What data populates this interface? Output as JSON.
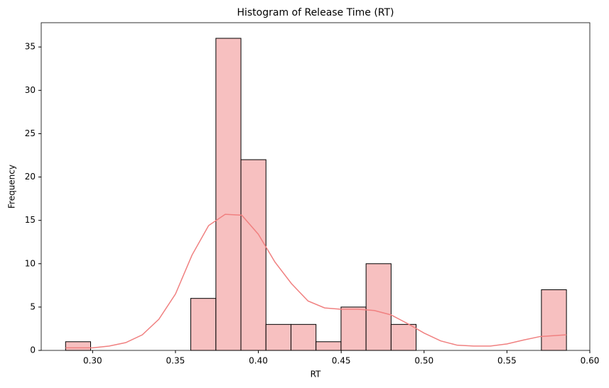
{
  "chart_data": {
    "type": "histogram",
    "title": "Histogram of Release Time (RT)",
    "x_label": "RT",
    "y_label": "Frequency",
    "bins": [
      0.2837,
      0.2988,
      0.3139,
      0.329,
      0.3441,
      0.3592,
      0.3744,
      0.3895,
      0.4046,
      0.4197,
      0.4348,
      0.4499,
      0.465,
      0.4801,
      0.4952,
      0.5103,
      0.5255,
      0.5406,
      0.5557,
      0.5708,
      0.5859
    ],
    "counts": [
      1,
      0,
      0,
      0,
      0,
      6,
      36,
      22,
      3,
      3,
      1,
      5,
      10,
      3,
      0,
      0,
      0,
      0,
      0,
      7
    ],
    "color": "#f7c0c0",
    "edgecolor": "#000000",
    "kde": {
      "color": "#f08080",
      "x": [
        0.2837,
        0.3,
        0.31,
        0.32,
        0.33,
        0.34,
        0.35,
        0.36,
        0.37,
        0.38,
        0.39,
        0.4,
        0.41,
        0.42,
        0.43,
        0.44,
        0.45,
        0.46,
        0.47,
        0.48,
        0.49,
        0.5,
        0.51,
        0.52,
        0.53,
        0.54,
        0.55,
        0.56,
        0.57,
        0.5859
      ],
      "values": [
        0.3,
        0.3,
        0.5,
        0.9,
        1.8,
        3.6,
        6.5,
        11,
        14.4,
        15.7,
        15.6,
        13.4,
        10.2,
        7.7,
        5.7,
        4.9,
        4.75,
        4.75,
        4.6,
        4.1,
        3.1,
        2.0,
        1.1,
        0.6,
        0.5,
        0.5,
        0.75,
        1.2,
        1.6,
        1.8
      ]
    },
    "xlim": [
      0.269,
      0.6
    ],
    "ylim": [
      0,
      37.8
    ],
    "xticks": [
      {
        "value": 0.3,
        "label": "0.30"
      },
      {
        "value": 0.35,
        "label": "0.35"
      },
      {
        "value": 0.4,
        "label": "0.40"
      },
      {
        "value": 0.45,
        "label": "0.45"
      },
      {
        "value": 0.5,
        "label": "0.50"
      },
      {
        "value": 0.55,
        "label": "0.55"
      },
      {
        "value": 0.6,
        "label": "0.60"
      }
    ],
    "yticks": [
      0,
      5,
      10,
      15,
      20,
      25,
      30,
      35
    ]
  }
}
